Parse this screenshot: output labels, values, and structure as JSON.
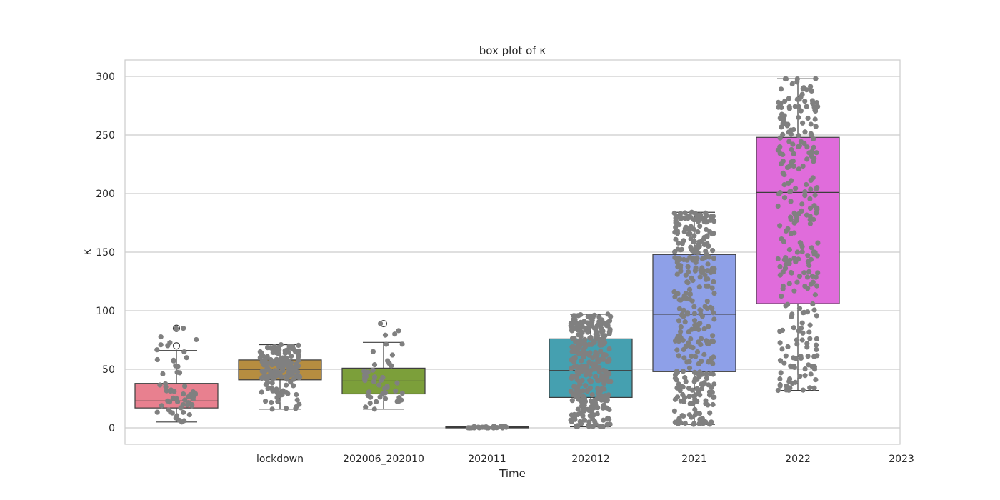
{
  "chart_data": {
    "type": "box",
    "title": "box plot of κ",
    "xlabel": "Time",
    "ylabel": "κ",
    "ylim": [
      -14,
      314
    ],
    "yticks": [
      0,
      50,
      100,
      150,
      200,
      250,
      300
    ],
    "grid": true,
    "legend": "none",
    "xtick_labels": [
      "lockdown",
      "202006_202010",
      "202011",
      "202012",
      "2021",
      "2022",
      "2023"
    ],
    "groups": [
      {
        "color": "#e8808f",
        "whisker_low": 5,
        "q1": 17,
        "median": 23,
        "q3": 38,
        "whisker_high": 66,
        "outliers": [
          85,
          70
        ],
        "points": {
          "count": 60,
          "min": 5,
          "max": 85
        }
      },
      {
        "color": "#b68d40",
        "whisker_low": 16,
        "q1": 41,
        "median": 50,
        "q3": 58,
        "whisker_high": 71,
        "outliers": [],
        "points": {
          "count": 150,
          "min": 16,
          "max": 71
        }
      },
      {
        "color": "#7c9f3a",
        "whisker_low": 16,
        "q1": 29,
        "median": 40,
        "q3": 51,
        "whisker_high": 73,
        "outliers": [
          89
        ],
        "points": {
          "count": 45,
          "min": 16,
          "max": 89
        }
      },
      {
        "color": "#3f9c8a",
        "whisker_low": 0,
        "q1": 0,
        "median": 0.5,
        "q3": 1,
        "whisker_high": 1.5,
        "outliers": [],
        "points": {
          "count": 30,
          "min": 0,
          "max": 1.5
        }
      },
      {
        "color": "#45a0b0",
        "whisker_low": 1,
        "q1": 26,
        "median": 49,
        "q3": 76,
        "whisker_high": 97,
        "outliers": [],
        "points": {
          "count": 330,
          "min": 1,
          "max": 97
        }
      },
      {
        "color": "#8ea0e8",
        "whisker_low": 3,
        "q1": 48,
        "median": 97,
        "q3": 148,
        "whisker_high": 184,
        "outliers": [],
        "points": {
          "count": 330,
          "min": 3,
          "max": 184
        }
      },
      {
        "color": "#e06cdb",
        "whisker_low": 32,
        "q1": 106,
        "median": 201,
        "q3": 248,
        "whisker_high": 298,
        "outliers": [],
        "points": {
          "count": 270,
          "min": 32,
          "max": 298
        }
      }
    ],
    "point_color": "#808080"
  }
}
